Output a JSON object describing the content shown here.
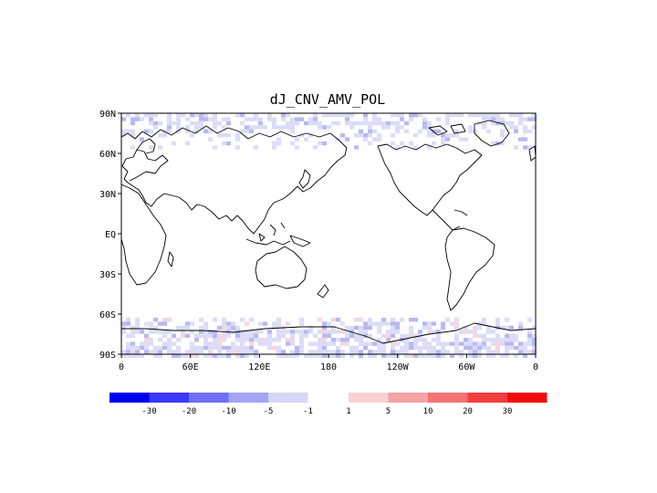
{
  "title": "dJ_CNV_AMV_POL",
  "map": {
    "projection": "cylindrical equidistant",
    "lon_range": [
      0,
      360
    ],
    "lat_range": [
      -90,
      90
    ],
    "lat_ticks": [
      {
        "lat": 90,
        "label": "90N"
      },
      {
        "lat": 60,
        "label": "60N"
      },
      {
        "lat": 30,
        "label": "30N"
      },
      {
        "lat": 0,
        "label": "EQ"
      },
      {
        "lat": -30,
        "label": "30S"
      },
      {
        "lat": -60,
        "label": "60S"
      },
      {
        "lat": -90,
        "label": "90S"
      }
    ],
    "lon_ticks": [
      {
        "lon": 0,
        "label": "0"
      },
      {
        "lon": 60,
        "label": "60E"
      },
      {
        "lon": 120,
        "label": "120E"
      },
      {
        "lon": 180,
        "label": "180"
      },
      {
        "lon": 240,
        "label": "120W"
      },
      {
        "lon": 300,
        "label": "60W"
      },
      {
        "lon": 360,
        "label": "0"
      }
    ]
  },
  "colorbar": {
    "negative": [
      {
        "color": "#0000ee",
        "label": "-30"
      },
      {
        "color": "#3a3aff",
        "label": "-20"
      },
      {
        "color": "#6e6efa",
        "label": "-10"
      },
      {
        "color": "#a4a4f4",
        "label": "-5"
      },
      {
        "color": "#d6d6f6",
        "label": "-1"
      }
    ],
    "positive": [
      {
        "color": "#f9d2d2",
        "label": "1"
      },
      {
        "color": "#f5a4a4",
        "label": "5"
      },
      {
        "color": "#f47272",
        "label": "10"
      },
      {
        "color": "#f33e3e",
        "label": "20"
      },
      {
        "color": "#f50a0a",
        "label": "30"
      }
    ]
  },
  "field": {
    "description_bands": [
      {
        "lat_min": 62,
        "lat_max": 90,
        "dominant": "negative"
      },
      {
        "lat_min": -90,
        "lat_max": -58,
        "dominant": "negative"
      }
    ],
    "colors": {
      "weak_neg": "#dcdcf8",
      "mid_neg": "#b8b8f2",
      "weak_pos": "#f7d6dc"
    }
  }
}
